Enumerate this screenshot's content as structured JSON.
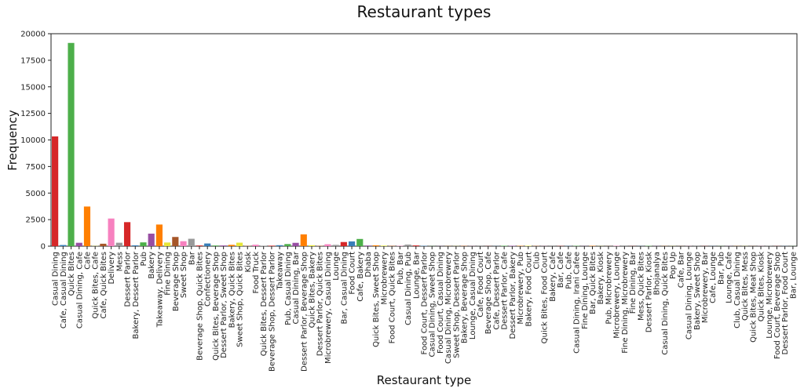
{
  "chart_data": {
    "type": "bar",
    "title": "Restaurant types",
    "xlabel": "Restaurant type",
    "ylabel": "Frequency",
    "ylim": [
      0,
      20000
    ],
    "yticks": [
      0,
      2500,
      5000,
      7500,
      10000,
      12500,
      15000,
      17500,
      20000
    ],
    "grid": false,
    "palette": [
      "#d62728",
      "#377eb8",
      "#4daf4a",
      "#984ea3",
      "#ff7f00",
      "#e6e63a",
      "#a65628",
      "#f781bf",
      "#999999"
    ],
    "categories": [
      "Casual Dining",
      "Cafe, Casual Dining",
      "Quick Bites",
      "Casual Dining, Cafe",
      "Cafe",
      "Quick Bites, Cafe",
      "Cafe, Quick Bites",
      "Delivery",
      "Mess",
      "Dessert Parlor",
      "Bakery, Dessert Parlor",
      "Pub",
      "Bakery",
      "Takeaway, Delivery",
      "Fine Dining",
      "Beverage Shop",
      "Sweet Shop",
      "Bar",
      "Beverage Shop, Quick Bites",
      "Confectionery",
      "Quick Bites, Beverage Shop",
      "Dessert Parlor, Sweet Shop",
      "Bakery, Quick Bites",
      "Sweet Shop, Quick Bites",
      "Kiosk",
      "Food Truck",
      "Quick Bites, Dessert Parlor",
      "Beverage Shop, Dessert Parlor",
      "Takeaway",
      "Pub, Casual Dining",
      "Casual Dining, Bar",
      "Dessert Parlor, Beverage Shop",
      "Quick Bites, Bakery",
      "Dessert Parlor, Quick Bites",
      "Microbrewery, Casual Dining",
      "Lounge",
      "Bar, Casual Dining",
      "Food Court",
      "Cafe, Bakery",
      "Dhaba",
      "Quick Bites, Sweet Shop",
      "Microbrewery",
      "Food Court, Quick Bites",
      "Pub, Bar",
      "Casual Dining, Pub",
      "Lounge, Bar",
      "Food Court, Dessert Parlor",
      "Casual Dining, Sweet Shop",
      "Food Court, Casual Dining",
      "Casual Dining, Microbrewery",
      "Sweet Shop, Dessert Parlor",
      "Bakery, Beverage Shop",
      "Lounge, Casual Dining",
      "Cafe, Food Court",
      "Beverage Shop, Cafe",
      "Cafe, Dessert Parlor",
      "Dessert Parlor, Cafe",
      "Dessert Parlor, Bakery",
      "Microbrewery, Pub",
      "Bakery, Food Court",
      "Club",
      "Quick Bites, Food Court",
      "Bakery, Cafe",
      "Bar, Cafe",
      "Pub, Cafe",
      "Casual Dining, Irani Cafee",
      "Fine Dining, Lounge",
      "Bar, Quick Bites",
      "Bakery, Kiosk",
      "Pub, Microbrewery",
      "Microbrewery, Lounge",
      "Fine Dining, Microbrewery",
      "Fine Dining, Bar",
      "Mess, Quick Bites",
      "Dessert Parlor, Kiosk",
      "Bhojanalya",
      "Casual Dining, Quick Bites",
      "Pop Up",
      "Cafe, Bar",
      "Casual Dining, Lounge",
      "Bakery, Sweet Shop",
      "Microbrewery, Bar",
      "Cafe, Lounge",
      "Bar, Pub",
      "Lounge, Cafe",
      "Club, Casual Dining",
      "Quick Bites, Mess",
      "Quick Bites, Meat Shop",
      "Quick Bites, Kiosk",
      "Lounge, Microbrewery",
      "Food Court, Beverage Shop",
      "Dessert Parlor, Food Court",
      "Bar, Lounge"
    ],
    "values": [
      10330,
      107,
      19132,
      319,
      3732,
      20,
      230,
      2604,
      324,
      2263,
      80,
      357,
      1179,
      2037,
      346,
      867,
      469,
      697,
      66,
      253,
      64,
      67,
      125,
      330,
      34,
      135,
      30,
      48,
      90,
      200,
      315,
      1110,
      90,
      35,
      180,
      120,
      390,
      450,
      680,
      62,
      80,
      52,
      40,
      30,
      150,
      70,
      30,
      12,
      12,
      12,
      12,
      40,
      12,
      12,
      12,
      12,
      40,
      40,
      30,
      40,
      30,
      12,
      12,
      20,
      20,
      30,
      12,
      30,
      12,
      12,
      30,
      12,
      12,
      12,
      30,
      12,
      12,
      12,
      12,
      12,
      12,
      12,
      12,
      12,
      12,
      12,
      12,
      12,
      12,
      12,
      12,
      12,
      10
    ]
  }
}
